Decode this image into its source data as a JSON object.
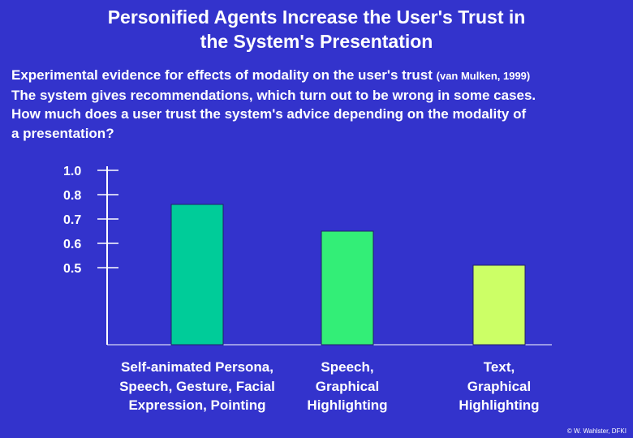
{
  "slide": {
    "title_lines": [
      "Personified Agents Increase the User's Trust in",
      "the System's Presentation"
    ],
    "intro": {
      "line1": "Experimental evidence for effects of modality on the user's trust",
      "citation": "(van Mulken, 1999)",
      "line2": "The system gives recommendations, which turn out to be wrong in some cases.",
      "line3": "How much does a user trust the system's advice depending on the modality of",
      "line4": "a presentation?"
    },
    "copyright": "© W. Wahlster, DFKI"
  },
  "chart_data": {
    "type": "bar",
    "title": "",
    "xlabel": "",
    "ylabel": "",
    "yticks": [
      1.0,
      0.8,
      0.7,
      0.6,
      0.5
    ],
    "ytick_labels": [
      "1.0",
      "0.8",
      "0.7",
      "0.6",
      "0.5"
    ],
    "categories": [
      [
        "Self-animated Persona,",
        "Speech, Gesture, Facial",
        "Expression, Pointing"
      ],
      [
        "Speech,",
        "Graphical",
        "Highlighting"
      ],
      [
        "Text,",
        "Graphical",
        "Highlighting"
      ]
    ],
    "values": [
      0.76,
      0.65,
      0.51
    ],
    "colors": [
      "#00cc99",
      "#33ee77",
      "#ccff66"
    ],
    "grid": false,
    "legend": "none"
  }
}
